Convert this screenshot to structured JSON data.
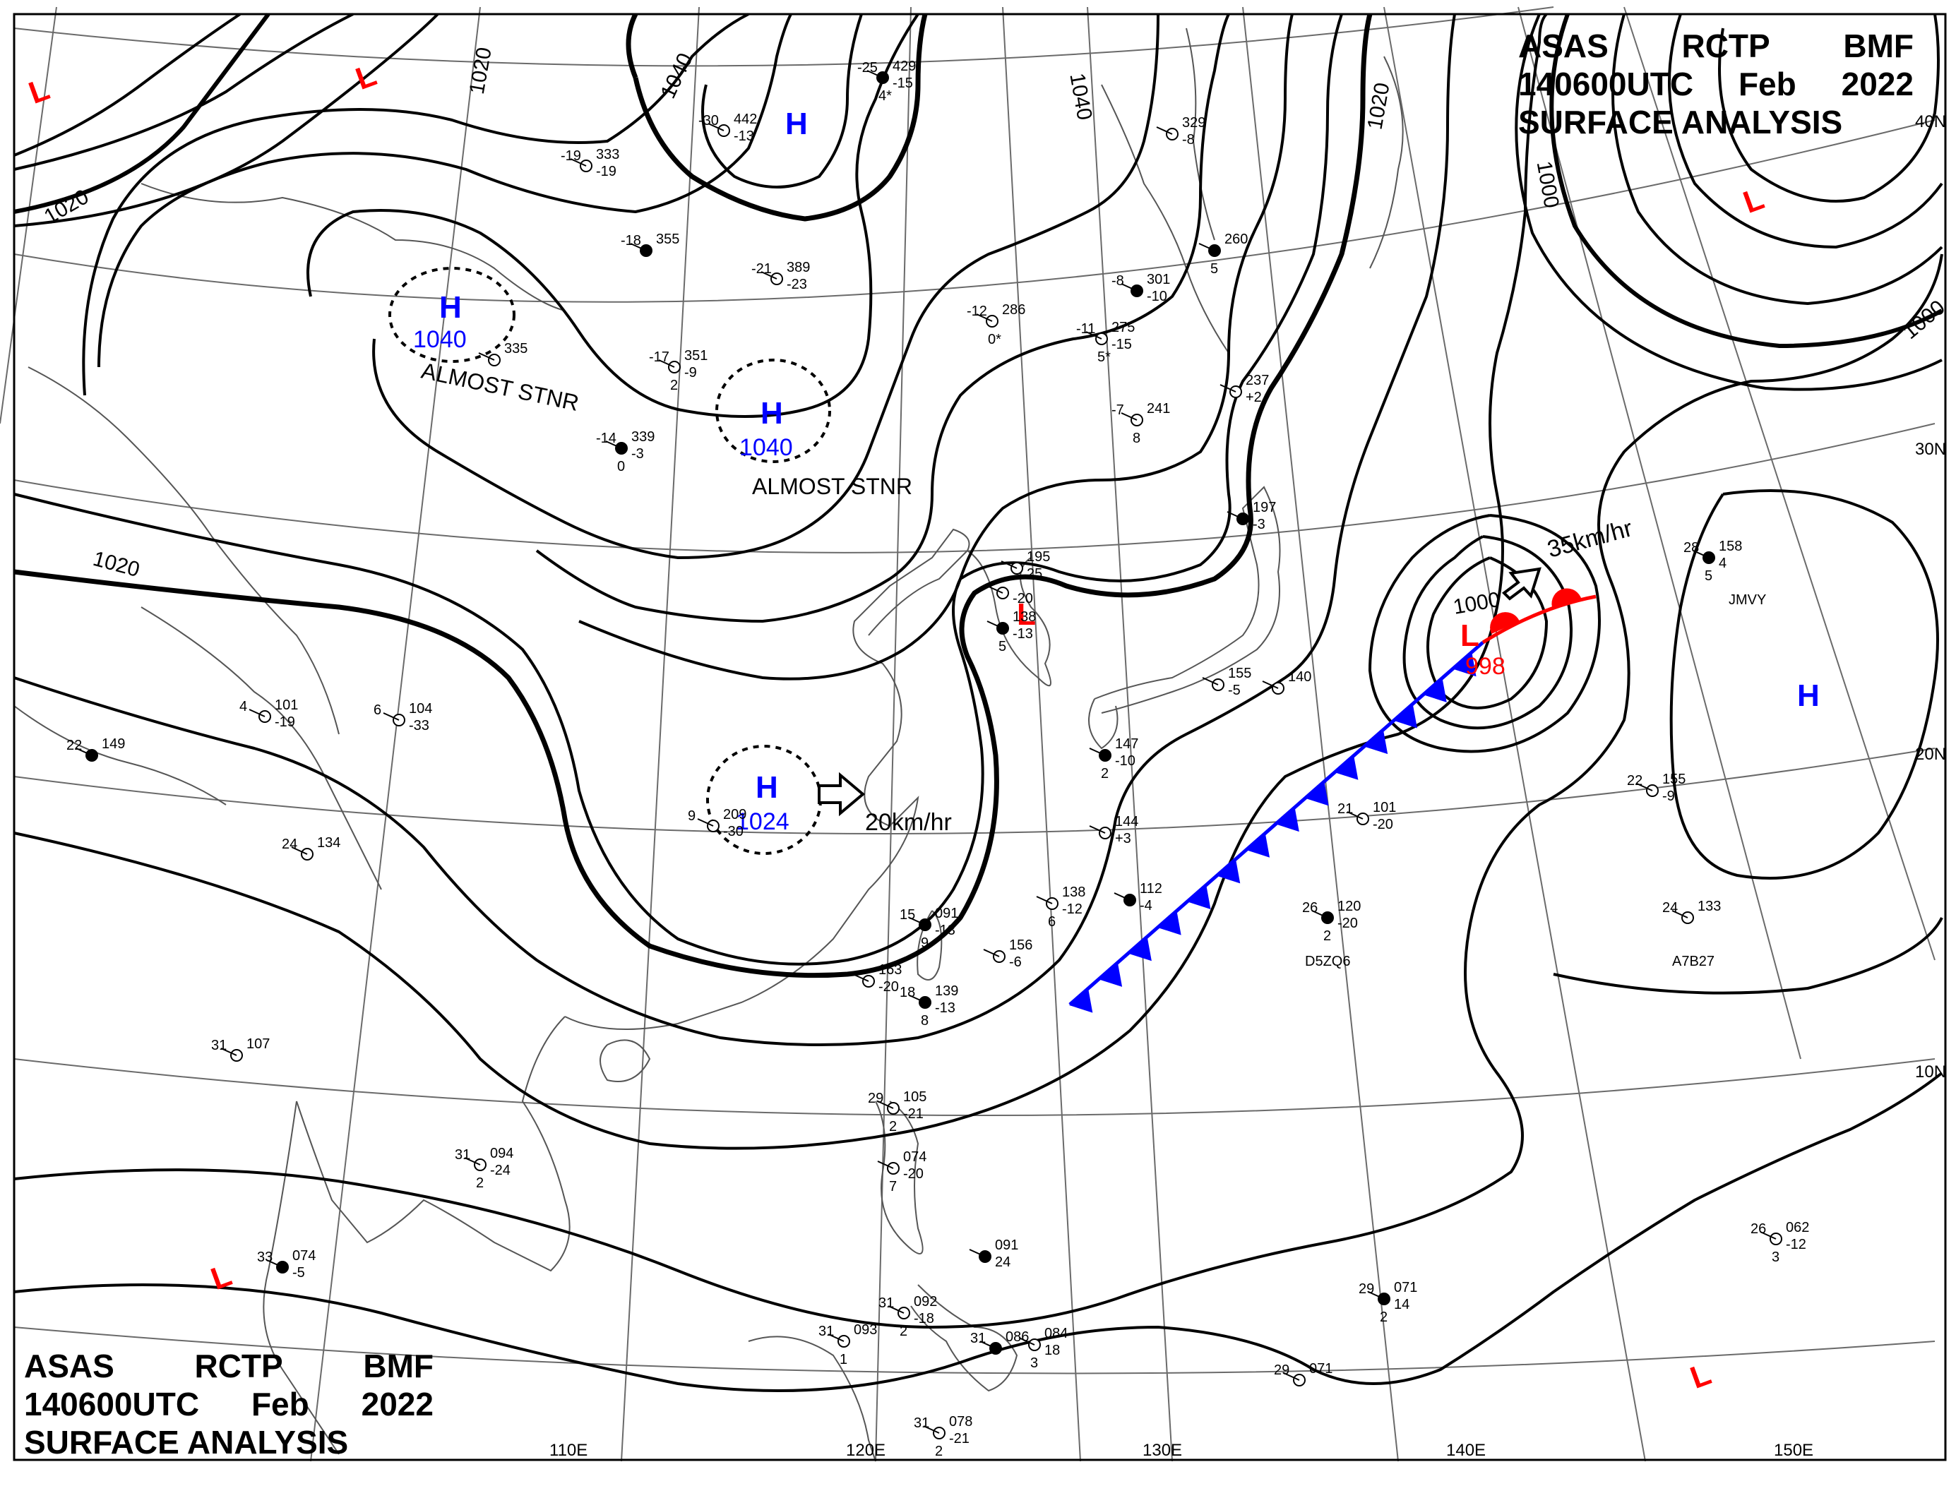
{
  "title": {
    "agency": [
      "ASAS",
      "RCTP",
      "BMF"
    ],
    "time": [
      "140600UTC",
      "Feb",
      "2022"
    ],
    "product": "SURFACE ANALYSIS"
  },
  "lon_labels": [
    "110E",
    "120E",
    "130E",
    "140E",
    "150E"
  ],
  "lat_labels": [
    "40N",
    "30N",
    "20N",
    "10N"
  ],
  "highs": [
    {
      "symbol": "H",
      "pressure": "",
      "note": ""
    },
    {
      "symbol": "H",
      "pressure": "1040",
      "note": "ALMOST STNR"
    },
    {
      "symbol": "H",
      "pressure": "1040",
      "note": "ALMOST STNR"
    },
    {
      "symbol": "H",
      "pressure": "1024",
      "note": ""
    },
    {
      "symbol": "H",
      "pressure": "",
      "note": ""
    }
  ],
  "lows": [
    {
      "symbol": "L",
      "pressure": ""
    },
    {
      "symbol": "L",
      "pressure": ""
    },
    {
      "symbol": "L",
      "pressure": ""
    },
    {
      "symbol": "L",
      "pressure": ""
    },
    {
      "symbol": "L",
      "pressure": "998"
    },
    {
      "symbol": "L",
      "pressure": ""
    },
    {
      "symbol": "L",
      "pressure": ""
    }
  ],
  "movements": [
    {
      "system": "H 1024",
      "speed": "20km/hr"
    },
    {
      "system": "L 998",
      "speed": "35km/hr"
    }
  ],
  "isobar_labels": [
    "1020",
    "1020",
    "1040",
    "1040",
    "1020",
    "1020",
    "1000",
    "1000",
    "1000"
  ],
  "stations": [
    {
      "t": "-25",
      "p": "429",
      "d": "-15",
      "w": "4*"
    },
    {
      "t": "-30",
      "p": "442",
      "d": "-13",
      "w": ""
    },
    {
      "t": "-19",
      "p": "333",
      "d": "-19",
      "w": ""
    },
    {
      "t": "-18",
      "p": "355",
      "d": "",
      "w": ""
    },
    {
      "t": "-21",
      "p": "389",
      "d": "-23",
      "w": ""
    },
    {
      "t": "-17",
      "p": "351",
      "d": "-9",
      "w": "2"
    },
    {
      "t": "-14",
      "p": "339",
      "d": "-3",
      "w": "0"
    },
    {
      "t": "",
      "p": "335",
      "d": "",
      "w": ""
    },
    {
      "t": "-12",
      "p": "286",
      "d": "",
      "w": "0*"
    },
    {
      "t": "-8",
      "p": "301",
      "d": "-10",
      "w": ""
    },
    {
      "t": "-11",
      "p": "275",
      "d": "-15",
      "w": "5*"
    },
    {
      "t": "",
      "p": "329",
      "d": "-8",
      "w": ""
    },
    {
      "t": "",
      "p": "260",
      "d": "",
      "w": "5"
    },
    {
      "t": "",
      "p": "237",
      "d": "+2",
      "w": ""
    },
    {
      "t": "-7",
      "p": "241",
      "d": "",
      "w": "8"
    },
    {
      "t": "",
      "p": "197",
      "d": "-3",
      "w": ""
    },
    {
      "t": "",
      "p": "195",
      "d": "25",
      "w": ""
    },
    {
      "t": "",
      "p": "",
      "d": "-20",
      "w": ""
    },
    {
      "t": "",
      "p": "138",
      "d": "-13",
      "w": "5"
    },
    {
      "t": "",
      "p": "155",
      "d": "-5",
      "w": ""
    },
    {
      "t": "",
      "p": "140",
      "d": "",
      "w": ""
    },
    {
      "t": "",
      "p": "147",
      "d": "-10",
      "w": "2"
    },
    {
      "t": "",
      "p": "144",
      "d": "+3",
      "w": ""
    },
    {
      "t": "",
      "p": "138",
      "d": "-12",
      "w": "6"
    },
    {
      "t": "",
      "p": "112",
      "d": "-4",
      "w": ""
    },
    {
      "t": "4",
      "p": "101",
      "d": "-19",
      "w": ""
    },
    {
      "t": "6",
      "p": "104",
      "d": "-33",
      "w": ""
    },
    {
      "t": "22",
      "p": "149",
      "d": "",
      "w": ""
    },
    {
      "t": "9",
      "p": "209",
      "d": "-30",
      "w": ""
    },
    {
      "t": "24",
      "p": "134",
      "d": "",
      "w": ""
    },
    {
      "t": "15",
      "p": "091",
      "d": "-13",
      "w": "9"
    },
    {
      "t": "",
      "p": "156",
      "d": "-6",
      "w": ""
    },
    {
      "t": "",
      "p": "163",
      "d": "-20",
      "w": ""
    },
    {
      "t": "18",
      "p": "139",
      "d": "-13",
      "w": "8"
    },
    {
      "t": "31",
      "p": "107",
      "d": "",
      "w": ""
    },
    {
      "t": "31",
      "p": "094",
      "d": "-24",
      "w": "2"
    },
    {
      "t": "33",
      "p": "074",
      "d": "-5",
      "w": ""
    },
    {
      "t": "29",
      "p": "105",
      "d": "-21",
      "w": "2"
    },
    {
      "t": "",
      "p": "074",
      "d": "-20",
      "w": "7"
    },
    {
      "t": "",
      "p": "091",
      "d": "24",
      "w": ""
    },
    {
      "t": "31",
      "p": "092",
      "d": "-18",
      "w": "2"
    },
    {
      "t": "31",
      "p": "093",
      "d": "",
      "w": "1"
    },
    {
      "t": "31",
      "p": "086",
      "d": "",
      "w": ""
    },
    {
      "t": "",
      "p": "084",
      "d": "18",
      "w": "3"
    },
    {
      "t": "31",
      "p": "078",
      "d": "-21",
      "w": "2"
    },
    {
      "t": "29",
      "p": "071",
      "d": "14",
      "w": "2"
    },
    {
      "t": "29",
      "p": "071",
      "d": "",
      "w": ""
    },
    {
      "t": "21",
      "p": "101",
      "d": "-20",
      "w": ""
    },
    {
      "t": "26",
      "p": "120",
      "d": "-20",
      "w": "2"
    },
    {
      "t": "22",
      "p": "155",
      "d": "-9",
      "w": ""
    },
    {
      "t": "24",
      "p": "133",
      "d": "",
      "w": ""
    },
    {
      "t": "28",
      "p": "158",
      "d": "4",
      "w": "5"
    },
    {
      "t": "26",
      "p": "062",
      "d": "-12",
      "w": "3"
    }
  ],
  "ship_ids": [
    "D5ZQ6",
    "A7B27",
    "JMVY"
  ],
  "colors": {
    "isobar": "#000000",
    "high": "#0000ff",
    "low": "#ff0000",
    "cold_front": "#0000ff",
    "warm_front": "#ff0000",
    "coast": "#555555",
    "grid": "#666666"
  }
}
